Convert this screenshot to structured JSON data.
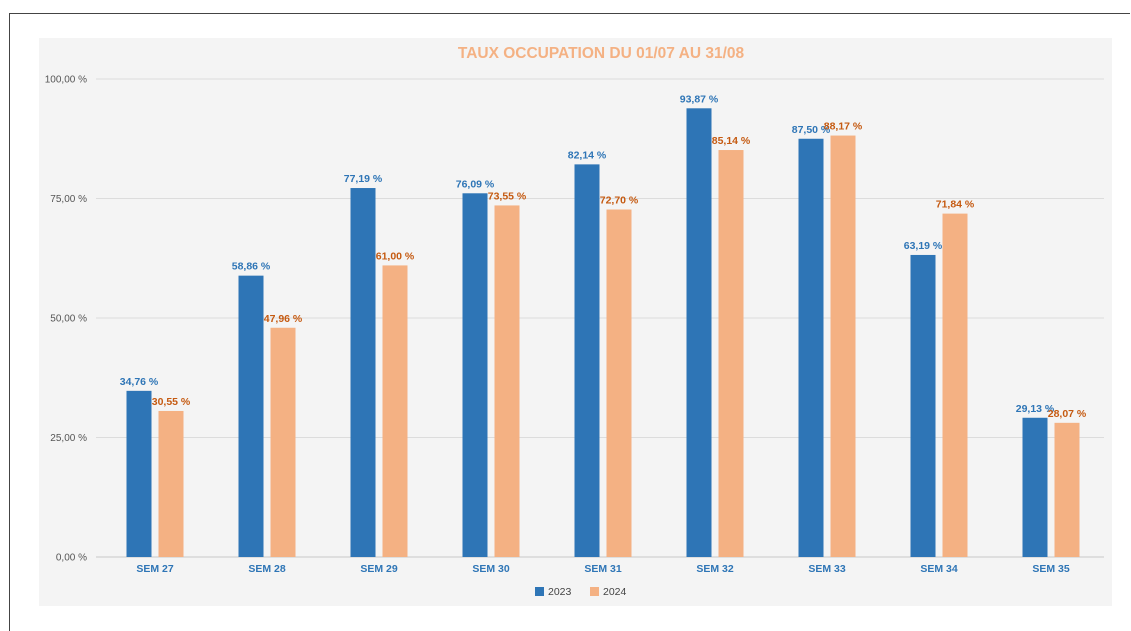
{
  "chart_data": {
    "type": "bar",
    "title": "TAUX OCCUPATION DU 01/07 AU 31/08",
    "categories": [
      "SEM 27",
      "SEM 28",
      "SEM 29",
      "SEM 30",
      "SEM 31",
      "SEM 32",
      "SEM 33",
      "SEM 34",
      "SEM 35"
    ],
    "series": [
      {
        "name": "2023",
        "color": "#2e75b6",
        "values": [
          34.76,
          58.86,
          77.19,
          76.09,
          82.14,
          93.87,
          87.5,
          63.19,
          29.13
        ],
        "labels": [
          "34,76 %",
          "58,86 %",
          "77,19 %",
          "76,09 %",
          "82,14 %",
          "93,87 %",
          "87,50 %",
          "63,19 %",
          "29,13 %"
        ]
      },
      {
        "name": "2024",
        "color": "#f4b183",
        "label_color": "#c55a11",
        "values": [
          30.55,
          47.96,
          61.0,
          73.55,
          72.7,
          85.14,
          88.17,
          71.84,
          28.07
        ],
        "labels": [
          "30,55 %",
          "47,96 %",
          "61,00 %",
          "73,55 %",
          "72,70 %",
          "85,14 %",
          "88,17 %",
          "71,84 %",
          "28,07 %"
        ]
      }
    ],
    "ylim": [
      0,
      100
    ],
    "yticks": [
      0,
      25,
      50,
      75,
      100
    ],
    "ytick_labels": [
      "0,00 %",
      "25,00 %",
      "50,00 %",
      "75,00 %",
      "100,00 %"
    ],
    "grid": true,
    "legend_position": "bottom"
  }
}
